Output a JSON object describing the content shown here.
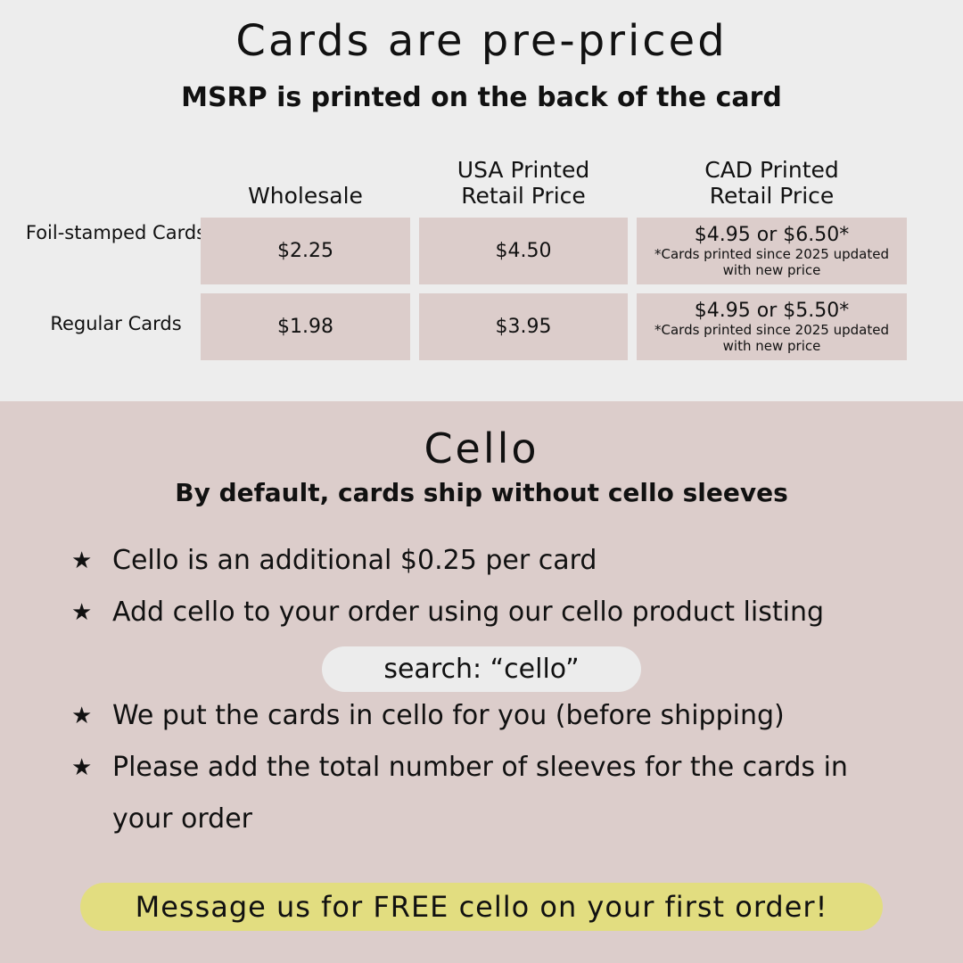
{
  "pricing": {
    "title": "Cards are pre-priced",
    "subtitle": "MSRP is printed on the back of the card",
    "headers": [
      "Wholesale",
      "USA Printed\nRetail Price",
      "CAD Printed\nRetail Price"
    ],
    "rows": [
      {
        "label": "Foil-stamped Cards",
        "wholesale": "$2.25",
        "usa": "$4.50",
        "cad": "$4.95 or $6.50*",
        "note": "*Cards printed since 2025 updated with new price"
      },
      {
        "label": "Regular Cards",
        "wholesale": "$1.98",
        "usa": "$3.95",
        "cad": "$4.95 or $5.50*",
        "note": "*Cards printed since 2025 updated with new price"
      }
    ]
  },
  "cello": {
    "title": "Cello",
    "subtitle": "By default, cards ship without cello sleeves",
    "bullet_icon": "star-icon",
    "items": [
      "Cello is an additional $0.25 per card",
      "Add cello to your order using our cello product listing",
      "We put the cards in cello for you (before shipping)",
      "Please add the total number of sleeves for the cards in your order"
    ],
    "search_hint": "search: “cello”",
    "cta": "Message us for FREE cello on your first order!"
  },
  "colors": {
    "top_bg": "#ededed",
    "accent_pink": "#dccdcb",
    "cta_yellow": "#e2dd80"
  }
}
